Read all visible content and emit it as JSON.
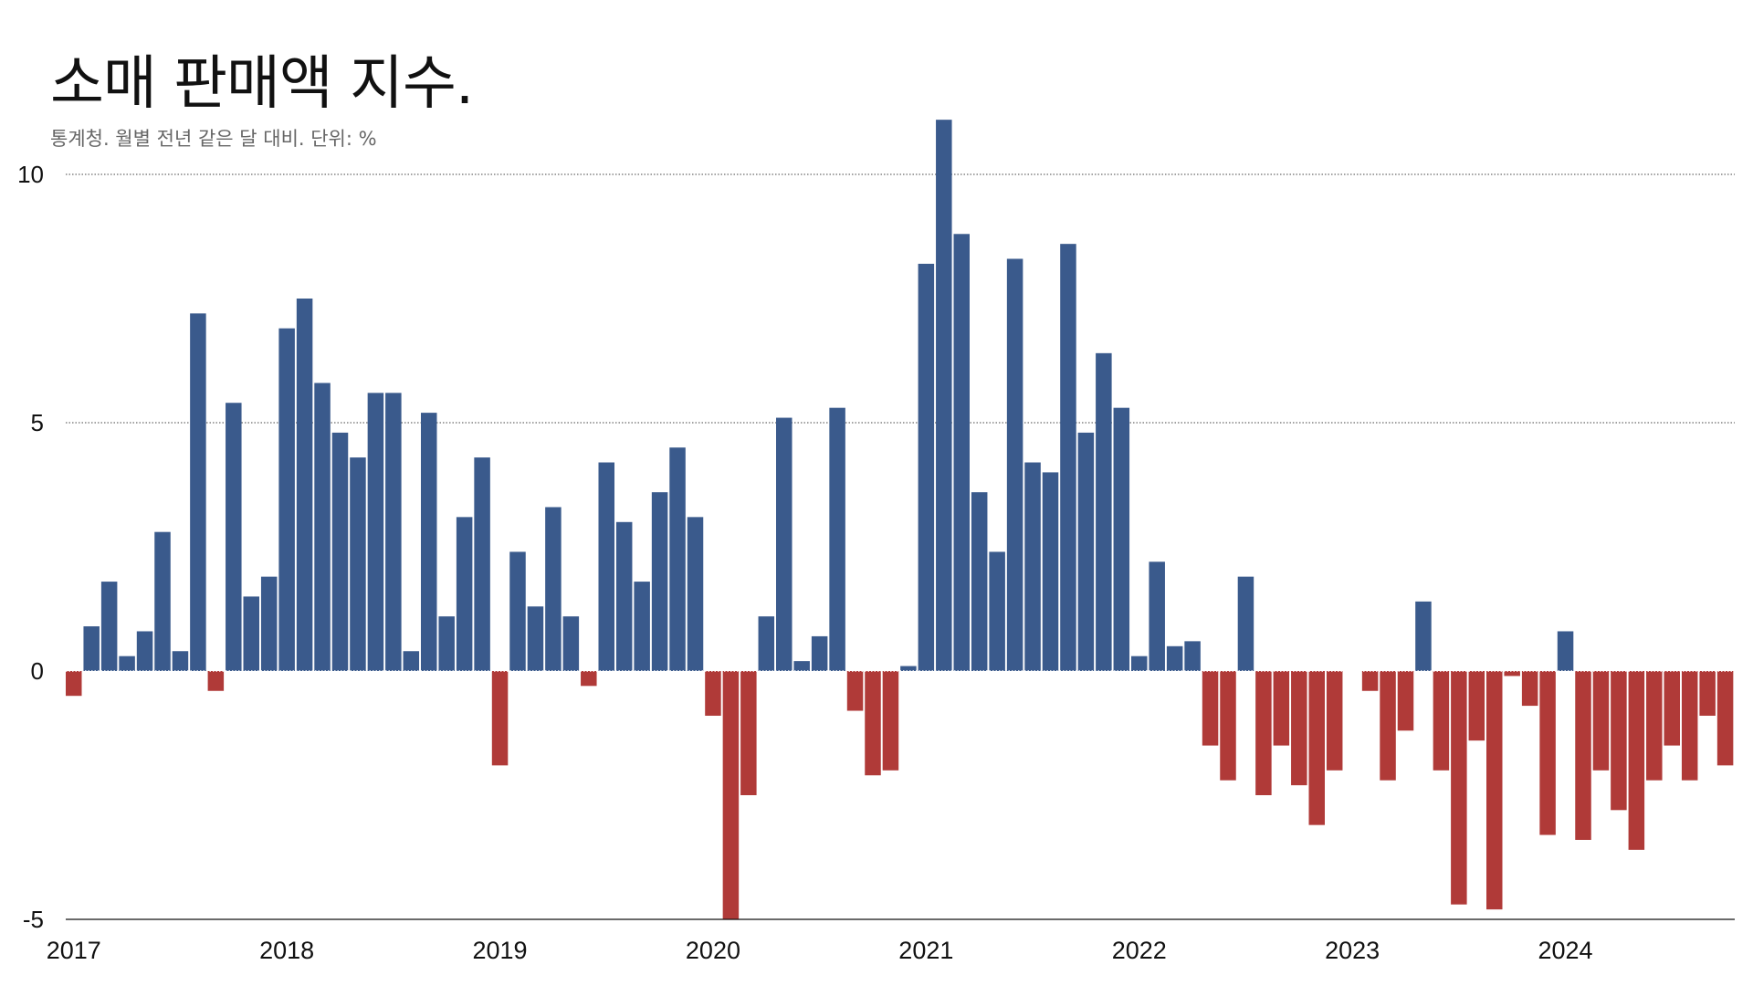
{
  "header": {
    "title": "소매 판매액 지수.",
    "subtitle": "통계청. 월별 전년 같은 달 대비. 단위: %"
  },
  "colors": {
    "positive": "#3a5a8c",
    "negative": "#b03a38",
    "grid": "#444444",
    "axis": "#111111"
  },
  "chart_data": {
    "type": "bar",
    "title": "소매 판매액 지수.",
    "subtitle": "통계청. 월별 전년 같은 달 대비. 단위: %",
    "xlabel": "",
    "ylabel": "",
    "ylim": [
      -5,
      10
    ],
    "y_ticks": [
      -5,
      0,
      5,
      10
    ],
    "x_ticks": [
      "2017",
      "2018",
      "2019",
      "2020",
      "2021",
      "2022",
      "2023",
      "2024"
    ],
    "grid": "horizontal dotted",
    "legend": "none",
    "start": "2017-01",
    "series": [
      {
        "values": [
          -0.5,
          0.9,
          1.8,
          0.3,
          0.8,
          2.8,
          0.4,
          7.2,
          -0.4,
          5.4,
          1.5,
          1.9,
          6.9,
          7.5,
          5.8,
          4.8,
          4.3,
          5.6,
          5.6,
          0.4,
          5.2,
          1.1,
          3.1,
          4.3,
          -1.9,
          2.4,
          1.3,
          3.3,
          1.1,
          -0.3,
          4.2,
          3.0,
          1.8,
          3.6,
          4.5,
          3.1,
          -0.9,
          -5.0,
          -2.5,
          1.1,
          5.1,
          0.2,
          0.7,
          5.3,
          -0.8,
          -2.1,
          -2.0,
          0.1,
          8.2,
          11.1,
          8.8,
          3.6,
          2.4,
          8.3,
          4.2,
          4.0,
          8.6,
          4.8,
          6.4,
          5.3,
          0.3,
          2.2,
          0.5,
          0.6,
          -1.5,
          -2.2,
          1.9,
          -2.5,
          -1.5,
          -2.3,
          -3.1,
          -2.0,
          0.0,
          -0.4,
          -2.2,
          -1.2,
          1.4,
          -2.0,
          -4.7,
          -1.4,
          -4.8,
          -0.1,
          -0.7,
          -3.3,
          0.8,
          -3.4,
          -2.0,
          -2.8,
          -3.6,
          -2.2,
          -1.5,
          -2.2,
          -0.9,
          -1.9
        ]
      }
    ]
  }
}
